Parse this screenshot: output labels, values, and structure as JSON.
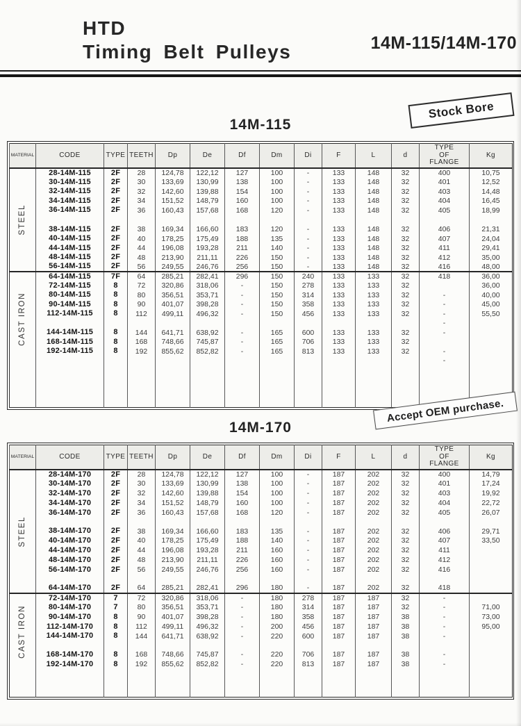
{
  "header": {
    "brand_line1": "HTD",
    "brand_line2": "Timing Belt Pulleys",
    "model_range": "14M-115/14M-170"
  },
  "stamps": {
    "stock_bore": "Stock Bore",
    "accept_oem": "Accept OEM purchase."
  },
  "tables": [
    {
      "title": "14M-115",
      "columns": [
        "MATERIAL",
        "CODE",
        "TYPE",
        "TEETH",
        "Dp",
        "De",
        "Df",
        "Dm",
        "Di",
        "F",
        "L",
        "d",
        "TYPE\nOF\nFLANGE",
        "Kg"
      ],
      "sections": [
        {
          "material": "STEEL",
          "rows": [
            [
              "28-14M-115",
              "2F",
              "28",
              "124,78",
              "122,12",
              "127",
              "100",
              "-",
              "133",
              "148",
              "32",
              "400",
              "10,75"
            ],
            [
              "30-14M-115",
              "2F",
              "30",
              "133,69",
              "130,99",
              "138",
              "100",
              "-",
              "133",
              "148",
              "32",
              "401",
              "12,52"
            ],
            [
              "32-14M-115",
              "2F",
              "32",
              "142,60",
              "139,88",
              "154",
              "100",
              "-",
              "133",
              "148",
              "32",
              "403",
              "14,48"
            ],
            [
              "34-14M-115",
              "2F",
              "34",
              "151,52",
              "148,79",
              "160",
              "100",
              "-",
              "133",
              "148",
              "32",
              "404",
              "16,45"
            ],
            [
              "36-14M-115",
              "2F",
              "36",
              "160,43",
              "157,68",
              "168",
              "120",
              "-",
              "133",
              "148",
              "32",
              "405",
              "18,99"
            ],
            "gap",
            [
              "38-14M-115",
              "2F",
              "38",
              "169,34",
              "166,60",
              "183",
              "120",
              "-",
              "133",
              "148",
              "32",
              "406",
              "21,31"
            ],
            [
              "40-14M-115",
              "2F",
              "40",
              "178,25",
              "175,49",
              "188",
              "135",
              "-",
              "133",
              "148",
              "32",
              "407",
              "24,04"
            ],
            [
              "44-14M-115",
              "2F",
              "44",
              "196,08",
              "193,28",
              "211",
              "140",
              "-",
              "133",
              "148",
              "32",
              "411",
              "29,41"
            ],
            [
              "48-14M-115",
              "2F",
              "48",
              "213,90",
              "211,11",
              "226",
              "150",
              "-",
              "133",
              "148",
              "32",
              "412",
              "35,00"
            ],
            [
              "56-14M-115",
              "2F",
              "56",
              "249,55",
              "246,76",
              "256",
              "150",
              "-",
              "133",
              "148",
              "32",
              "416",
              "48,00"
            ]
          ]
        },
        {
          "material": "CAST IRON",
          "rows": [
            [
              "64-14M-115",
              "7F",
              "64",
              "285,21",
              "282,41",
              "296",
              "150",
              "240",
              "133",
              "133",
              "32",
              "418",
              "36,00"
            ],
            [
              "72-14M-115",
              "8",
              "72",
              "320,86",
              "318,06",
              "-",
              "150",
              "278",
              "133",
              "133",
              "32",
              "",
              "36,00"
            ],
            [
              "80-14M-115",
              "8",
              "80",
              "356,51",
              "353,71",
              "-",
              "150",
              "314",
              "133",
              "133",
              "32",
              "-",
              "40,00"
            ],
            [
              "90-14M-115",
              "8",
              "90",
              "401,07",
              "398,28",
              "-",
              "150",
              "358",
              "133",
              "133",
              "32",
              "-",
              "45,00"
            ],
            [
              "112-14M-115",
              "8",
              "112",
              "499,11",
              "496,32",
              "-",
              "150",
              "456",
              "133",
              "133",
              "32",
              "-",
              "55,50"
            ],
            [
              "",
              "",
              "",
              "",
              "",
              "",
              "",
              "",
              "",
              "",
              "",
              "-",
              ""
            ],
            [
              "144-14M-115",
              "8",
              "144",
              "641,71",
              "638,92",
              "-",
              "165",
              "600",
              "133",
              "133",
              "32",
              "-",
              ""
            ],
            [
              "168-14M-115",
              "8",
              "168",
              "748,66",
              "745,87",
              "-",
              "165",
              "706",
              "133",
              "133",
              "32",
              "",
              ""
            ],
            [
              "192-14M-115",
              "8",
              "192",
              "855,62",
              "852,82",
              "-",
              "165",
              "813",
              "133",
              "133",
              "32",
              "-",
              ""
            ],
            [
              "",
              "",
              "",
              "",
              "",
              "",
              "",
              "",
              "",
              "",
              "",
              "-",
              ""
            ],
            "fill"
          ]
        }
      ]
    },
    {
      "title": "14M-170",
      "columns": [
        "MATERIAL",
        "CODE",
        "TYPE",
        "TEETH",
        "Dp",
        "De",
        "Df",
        "Dm",
        "Di",
        "F",
        "L",
        "d",
        "TYPE\nOF\nFLANGE",
        "Kg"
      ],
      "sections": [
        {
          "material": "STEEL",
          "rows": [
            [
              "28-14M-170",
              "2F",
              "28",
              "124,78",
              "122,12",
              "127",
              "100",
              "-",
              "187",
              "202",
              "32",
              "400",
              "14,79"
            ],
            [
              "30-14M-170",
              "2F",
              "30",
              "133,69",
              "130,99",
              "138",
              "100",
              "-",
              "187",
              "202",
              "32",
              "401",
              "17,24"
            ],
            [
              "32-14M-170",
              "2F",
              "32",
              "142,60",
              "139,88",
              "154",
              "100",
              "-",
              "187",
              "202",
              "32",
              "403",
              "19,92"
            ],
            [
              "34-14M-170",
              "2F",
              "34",
              "151,52",
              "148,79",
              "160",
              "100",
              "-",
              "187",
              "202",
              "32",
              "404",
              "22,72"
            ],
            [
              "36-14M-170",
              "2F",
              "36",
              "160,43",
              "157,68",
              "168",
              "120",
              "-",
              "187",
              "202",
              "32",
              "405",
              "26,07"
            ],
            "gap",
            [
              "38-14M-170",
              "2F",
              "38",
              "169,34",
              "166,60",
              "183",
              "135",
              "-",
              "187",
              "202",
              "32",
              "406",
              "29,71"
            ],
            [
              "40-14M-170",
              "2F",
              "40",
              "178,25",
              "175,49",
              "188",
              "140",
              "-",
              "187",
              "202",
              "32",
              "407",
              "33,50"
            ],
            [
              "44-14M-170",
              "2F",
              "44",
              "196,08",
              "193,28",
              "211",
              "160",
              "-",
              "187",
              "202",
              "32",
              "411",
              ""
            ],
            [
              "48-14M-170",
              "2F",
              "48",
              "213,90",
              "211,11",
              "226",
              "160",
              "-",
              "187",
              "202",
              "32",
              "412",
              ""
            ],
            [
              "56-14M-170",
              "2F",
              "56",
              "249,55",
              "246,76",
              "256",
              "160",
              "-",
              "187",
              "202",
              "32",
              "416",
              ""
            ],
            "gap",
            [
              "64-14M-170",
              "2F",
              "64",
              "285,21",
              "282,41",
              "296",
              "180",
              "-",
              "187",
              "202",
              "32",
              "418",
              ""
            ]
          ]
        },
        {
          "material": "CAST IRON",
          "rows": [
            [
              "72-14M-170",
              "7",
              "72",
              "320,86",
              "318,06",
              "-",
              "180",
              "278",
              "187",
              "187",
              "32",
              "-",
              ""
            ],
            [
              "80-14M-170",
              "7",
              "80",
              "356,51",
              "353,71",
              "-",
              "180",
              "314",
              "187",
              "187",
              "32",
              "-",
              "71,00"
            ],
            [
              "90-14M-170",
              "8",
              "90",
              "401,07",
              "398,28",
              "-",
              "180",
              "358",
              "187",
              "187",
              "38",
              "-",
              "73,00"
            ],
            [
              "112-14M-170",
              "8",
              "112",
              "499,11",
              "496,32",
              "-",
              "200",
              "456",
              "187",
              "187",
              "38",
              "-",
              "95,00"
            ],
            [
              "144-14M-170",
              "8",
              "144",
              "641,71",
              "638,92",
              "-",
              "220",
              "600",
              "187",
              "187",
              "38",
              "-",
              ""
            ],
            "gap",
            [
              "168-14M-170",
              "8",
              "168",
              "748,66",
              "745,87",
              "-",
              "220",
              "706",
              "187",
              "187",
              "38",
              "-",
              ""
            ],
            [
              "192-14M-170",
              "8",
              "192",
              "855,62",
              "852,82",
              "-",
              "220",
              "813",
              "187",
              "187",
              "38",
              "-",
              ""
            ],
            "fill"
          ]
        }
      ]
    }
  ]
}
